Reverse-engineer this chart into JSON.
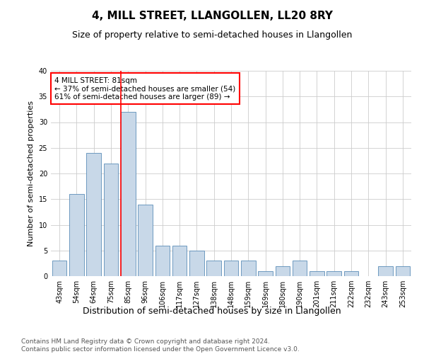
{
  "title": "4, MILL STREET, LLANGOLLEN, LL20 8RY",
  "subtitle": "Size of property relative to semi-detached houses in Llangollen",
  "xlabel": "Distribution of semi-detached houses by size in Llangollen",
  "ylabel": "Number of semi-detached properties",
  "categories": [
    "43sqm",
    "54sqm",
    "64sqm",
    "75sqm",
    "85sqm",
    "96sqm",
    "106sqm",
    "117sqm",
    "127sqm",
    "138sqm",
    "148sqm",
    "159sqm",
    "169sqm",
    "180sqm",
    "190sqm",
    "201sqm",
    "211sqm",
    "222sqm",
    "232sqm",
    "243sqm",
    "253sqm"
  ],
  "values": [
    3,
    16,
    24,
    22,
    32,
    14,
    6,
    6,
    5,
    3,
    3,
    3,
    1,
    2,
    3,
    1,
    1,
    1,
    0,
    2,
    2
  ],
  "bar_color": "#c8d8e8",
  "bar_edge_color": "#5b8db8",
  "subject_label": "4 MILL STREET: 81sqm",
  "annotation_line1": "← 37% of semi-detached houses are smaller (54)",
  "annotation_line2": "61% of semi-detached houses are larger (89) →",
  "annotation_box_color": "white",
  "annotation_box_edge_color": "red",
  "vline_color": "red",
  "ylim": [
    0,
    40
  ],
  "yticks": [
    0,
    5,
    10,
    15,
    20,
    25,
    30,
    35,
    40
  ],
  "grid_color": "#cccccc",
  "background_color": "white",
  "footer_line1": "Contains HM Land Registry data © Crown copyright and database right 2024.",
  "footer_line2": "Contains public sector information licensed under the Open Government Licence v3.0.",
  "title_fontsize": 11,
  "subtitle_fontsize": 9,
  "xlabel_fontsize": 9,
  "ylabel_fontsize": 8,
  "tick_fontsize": 7,
  "annotation_fontsize": 7.5,
  "footer_fontsize": 6.5
}
